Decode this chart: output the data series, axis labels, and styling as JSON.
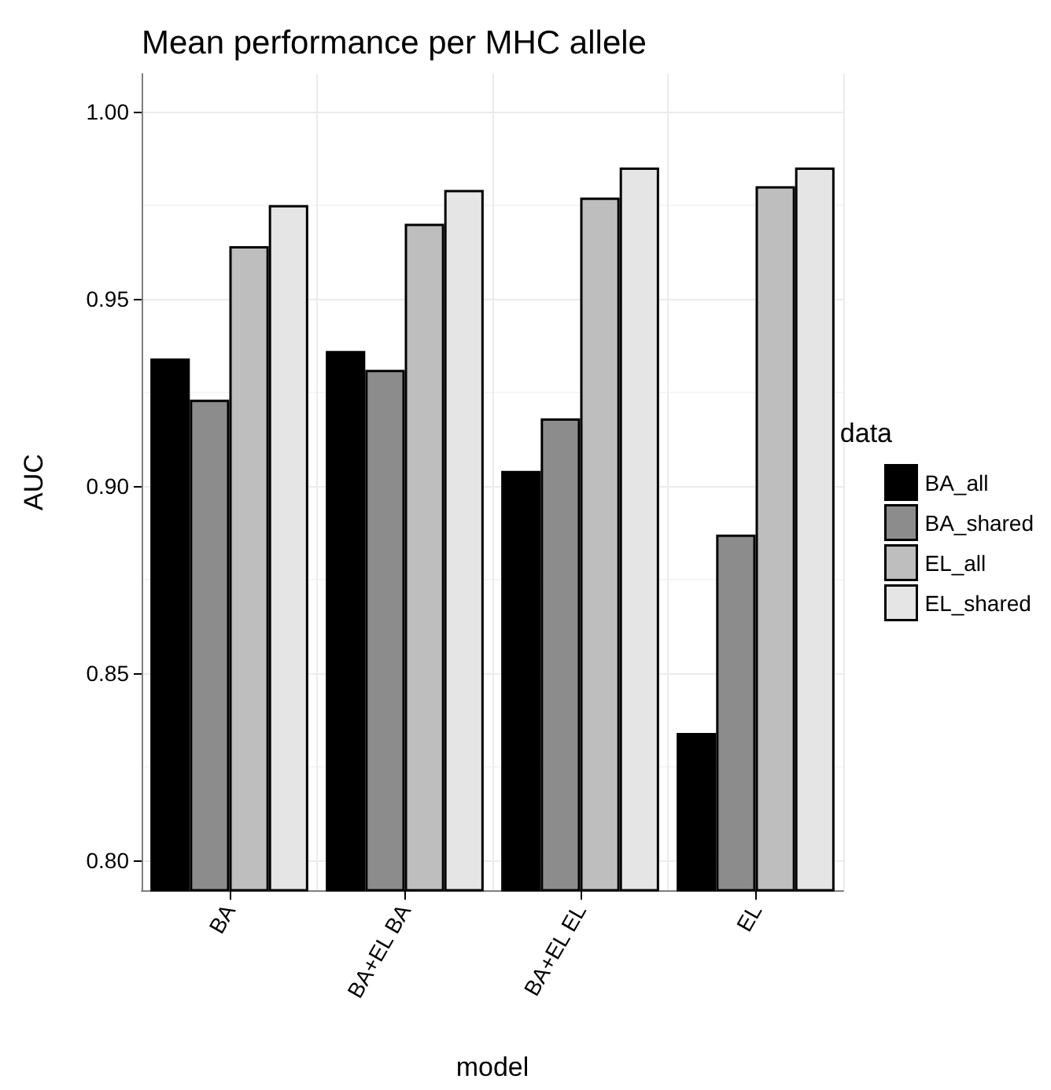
{
  "chart_data": {
    "type": "bar",
    "title": "Mean performance per MHC allele",
    "xlabel": "model",
    "ylabel": "AUC",
    "legend_title": "data",
    "categories": [
      "BA",
      "BA+EL BA",
      "BA+EL EL",
      "EL"
    ],
    "series": [
      {
        "name": "BA_all",
        "color": "#000000",
        "values": [
          0.934,
          0.936,
          0.904,
          0.834
        ]
      },
      {
        "name": "BA_shared",
        "color": "#8c8c8c",
        "values": [
          0.923,
          0.931,
          0.918,
          0.887
        ]
      },
      {
        "name": "EL_all",
        "color": "#bebebe",
        "values": [
          0.964,
          0.97,
          0.977,
          0.98
        ]
      },
      {
        "name": "EL_shared",
        "color": "#e5e5e5",
        "values": [
          0.975,
          0.979,
          0.985,
          0.985
        ]
      }
    ],
    "ylim": [
      0.792,
      1.01
    ],
    "yticks": [
      {
        "value": 0.8,
        "label": "0.80"
      },
      {
        "value": 0.85,
        "label": "0.85"
      },
      {
        "value": 0.9,
        "label": "0.90"
      },
      {
        "value": 0.95,
        "label": "0.95"
      },
      {
        "value": 1.0,
        "label": "1.00"
      }
    ],
    "grid": true,
    "legend": "right"
  }
}
